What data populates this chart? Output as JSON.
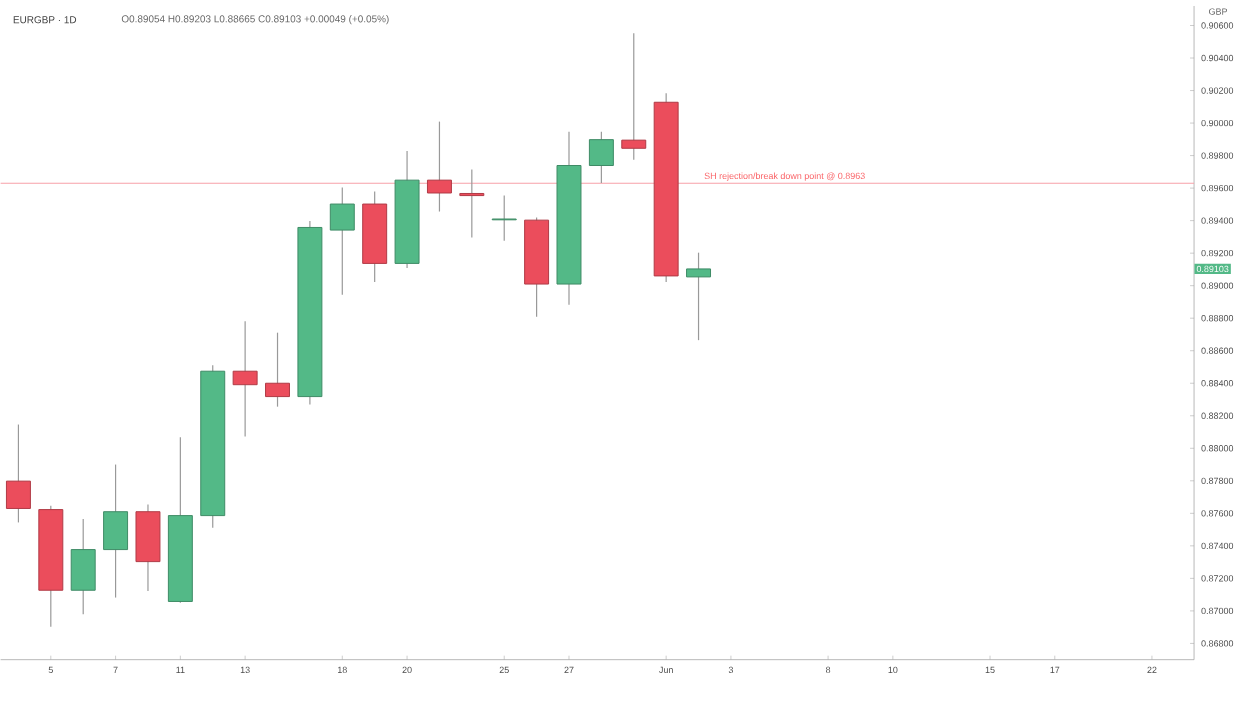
{
  "chart_data": {
    "type": "candlestick",
    "title": "EURGBP · 1D",
    "subtitle": "O0.89054 H0.89203 L0.88665 C0.89103 +0.00049 (+0.05%)",
    "ylabel": "GBP",
    "categories": [
      null,
      "5",
      null,
      "7",
      null,
      "11",
      null,
      "13",
      null,
      null,
      "18",
      null,
      "20",
      null,
      null,
      "25",
      null,
      "27",
      null,
      null,
      "Jun",
      null,
      "3",
      null,
      null,
      "8",
      null,
      "10",
      null,
      null,
      "15",
      null,
      "17",
      null,
      null,
      "22",
      null
    ],
    "ohlc": [
      [
        0.87798,
        0.88146,
        0.87544,
        0.8763
      ],
      [
        0.87623,
        0.87647,
        0.86902,
        0.87127
      ],
      [
        0.87127,
        0.87565,
        0.86979,
        0.87377
      ],
      [
        0.87377,
        0.879,
        0.87082,
        0.8761
      ],
      [
        0.8761,
        0.87655,
        0.87123,
        0.87303
      ],
      [
        0.87058,
        0.88068,
        0.8705,
        0.87586
      ],
      [
        0.87586,
        0.88511,
        0.87512,
        0.88474
      ],
      [
        0.88474,
        0.88781,
        0.88072,
        0.88391
      ],
      [
        0.884,
        0.88711,
        0.88256,
        0.88318
      ],
      [
        0.88318,
        0.89398,
        0.88269,
        0.89358
      ],
      [
        0.89342,
        0.89604,
        0.88944,
        0.89502
      ],
      [
        0.89502,
        0.89579,
        0.89023,
        0.89137
      ],
      [
        0.89137,
        0.89828,
        0.89109,
        0.89649
      ],
      [
        0.89649,
        0.90009,
        0.89456,
        0.8957
      ],
      [
        0.89567,
        0.89714,
        0.89297,
        0.89554
      ],
      [
        0.89405,
        0.89554,
        0.89276,
        0.8941
      ],
      [
        0.89403,
        0.89419,
        0.88809,
        0.8901
      ],
      [
        0.8901,
        0.89947,
        0.88883,
        0.89739
      ],
      [
        0.89739,
        0.89947,
        0.89632,
        0.89898
      ],
      [
        0.89895,
        0.90553,
        0.89775,
        0.89845
      ],
      [
        0.90128,
        0.90184,
        0.89023,
        0.8906
      ],
      [
        0.89054,
        0.89203,
        0.88665,
        0.89103
      ],
      null,
      null,
      null,
      null,
      null,
      null,
      null,
      null,
      null,
      null,
      null,
      null,
      null,
      null,
      null
    ],
    "colors": [
      "#eb4d5c",
      "#eb4d5c",
      "#53b987",
      "#53b987",
      "#eb4d5c",
      "#53b987",
      "#53b987",
      "#eb4d5c",
      "#eb4d5c",
      "#53b987",
      "#53b987",
      "#eb4d5c",
      "#53b987",
      "#eb4d5c",
      "#eb4d5c",
      "#53b987",
      "#eb4d5c",
      "#53b987",
      "#53b987",
      "#eb4d5c",
      "#eb4d5c",
      "#53b987",
      null,
      null,
      null,
      null,
      null,
      null,
      null,
      null,
      null,
      null,
      null,
      null,
      null,
      null,
      null
    ],
    "ylim": [
      0.867,
      0.9072
    ],
    "yticks": [
      {
        "value": 0.868,
        "label": "0.86800"
      },
      {
        "value": 0.87,
        "label": "0.87000"
      },
      {
        "value": 0.872,
        "label": "0.87200"
      },
      {
        "value": 0.874,
        "label": "0.87400"
      },
      {
        "value": 0.876,
        "label": "0.87600"
      },
      {
        "value": 0.878,
        "label": "0.87800"
      },
      {
        "value": 0.88,
        "label": "0.88000"
      },
      {
        "value": 0.882,
        "label": "0.88200"
      },
      {
        "value": 0.884,
        "label": "0.88400"
      },
      {
        "value": 0.886,
        "label": "0.88600"
      },
      {
        "value": 0.888,
        "label": "0.88800"
      },
      {
        "value": 0.89,
        "label": "0.89000"
      },
      {
        "value": 0.892,
        "label": "0.89200"
      },
      {
        "value": 0.894,
        "label": "0.89400"
      },
      {
        "value": 0.896,
        "label": "0.89600"
      },
      {
        "value": 0.898,
        "label": "0.89800"
      },
      {
        "value": 0.9,
        "label": "0.90000"
      },
      {
        "value": 0.902,
        "label": "0.90200"
      },
      {
        "value": 0.904,
        "label": "0.90400"
      },
      {
        "value": 0.906,
        "label": "0.90600"
      }
    ],
    "ref_lines": [
      {
        "axis": "y",
        "value": 0.8963,
        "label": "SH rejection/break down point @ 0.8963",
        "color": "#f7a1a8"
      }
    ],
    "annotations": [
      "0.89103"
    ]
  }
}
